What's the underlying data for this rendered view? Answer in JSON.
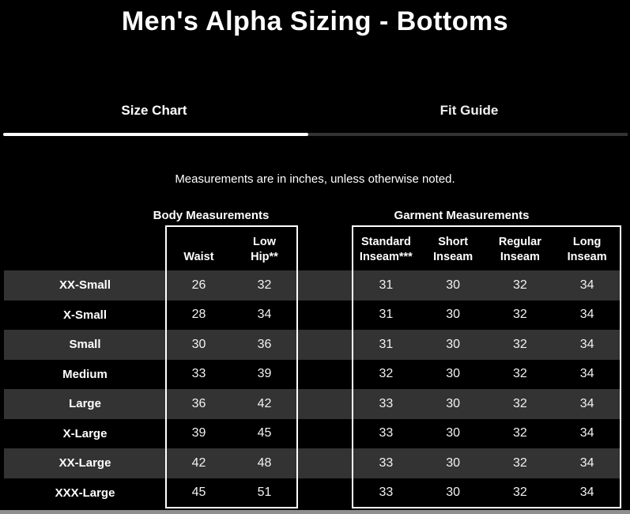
{
  "title": "Men's Alpha Sizing - Bottoms",
  "tabs": [
    {
      "label": "Size Chart",
      "active": true
    },
    {
      "label": "Fit Guide",
      "active": false
    }
  ],
  "note": "Measurements are in inches, unless otherwise noted.",
  "colors": {
    "background": "#000000",
    "stripe": "#333333",
    "active_tab_underline": "#ffffff",
    "inactive_tab_underline": "#333333",
    "text": "#ffffff",
    "box_border": "#ffffff",
    "scrollbar": "#8f8f8f"
  },
  "table": {
    "body_group_label": "Body Measurements",
    "garment_group_label": "Garment Measurements",
    "body_columns": [
      "Waist",
      "Low\nHip**"
    ],
    "garment_columns": [
      "Standard\nInseam***",
      "Short\nInseam",
      "Regular\nInseam",
      "Long\nInseam"
    ],
    "rows": [
      {
        "size": "XX-Small",
        "waist": "26",
        "low_hip": "32",
        "standard_inseam": "31",
        "short_inseam": "30",
        "regular_inseam": "32",
        "long_inseam": "34"
      },
      {
        "size": "X-Small",
        "waist": "28",
        "low_hip": "34",
        "standard_inseam": "31",
        "short_inseam": "30",
        "regular_inseam": "32",
        "long_inseam": "34"
      },
      {
        "size": "Small",
        "waist": "30",
        "low_hip": "36",
        "standard_inseam": "31",
        "short_inseam": "30",
        "regular_inseam": "32",
        "long_inseam": "34"
      },
      {
        "size": "Medium",
        "waist": "33",
        "low_hip": "39",
        "standard_inseam": "32",
        "short_inseam": "30",
        "regular_inseam": "32",
        "long_inseam": "34"
      },
      {
        "size": "Large",
        "waist": "36",
        "low_hip": "42",
        "standard_inseam": "33",
        "short_inseam": "30",
        "regular_inseam": "32",
        "long_inseam": "34"
      },
      {
        "size": "X-Large",
        "waist": "39",
        "low_hip": "45",
        "standard_inseam": "33",
        "short_inseam": "30",
        "regular_inseam": "32",
        "long_inseam": "34"
      },
      {
        "size": "XX-Large",
        "waist": "42",
        "low_hip": "48",
        "standard_inseam": "33",
        "short_inseam": "30",
        "regular_inseam": "32",
        "long_inseam": "34"
      },
      {
        "size": "XXX-Large",
        "waist": "45",
        "low_hip": "51",
        "standard_inseam": "33",
        "short_inseam": "30",
        "regular_inseam": "32",
        "long_inseam": "34"
      }
    ]
  }
}
